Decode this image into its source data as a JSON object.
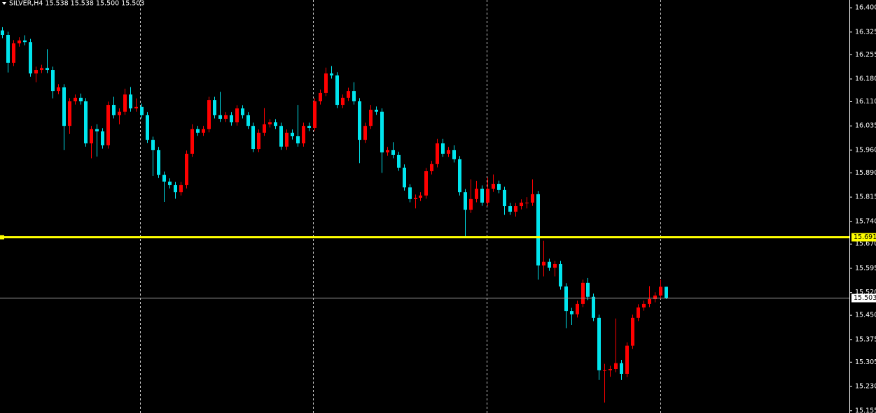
{
  "chart_data": {
    "type": "candlestick",
    "header": "SILVER,H4  15.538 15.538 15.500 15.503",
    "up_color": "#ff0000",
    "down_color": "#00e5ee",
    "open": [
      16.33,
      16.316,
      16.23,
      16.29,
      16.299,
      16.294,
      16.197,
      16.208,
      16.214,
      16.208,
      16.143,
      16.154,
      16.035,
      16.111,
      16.122,
      16.111,
      15.981,
      16.025,
      16.018,
      15.975,
      16.1,
      16.068,
      16.079,
      16.132,
      16.089,
      16.094,
      16.068,
      15.992,
      15.96,
      15.884,
      15.863,
      15.852,
      15.83,
      15.852,
      15.949,
      16.025,
      16.014,
      16.025,
      16.115,
      16.068,
      16.057,
      16.068,
      16.046,
      16.089,
      16.068,
      16.035,
      15.964,
      16.014,
      16.04,
      16.046,
      16.035,
      15.971,
      16.014,
      16.003,
      15.981,
      16.035,
      16.029,
      16.111,
      16.137,
      16.197,
      16.191,
      16.1,
      16.122,
      16.143,
      16.111,
      15.992,
      16.035,
      16.085,
      16.079,
      15.953,
      15.96,
      15.945,
      15.906,
      15.845,
      15.809,
      15.813,
      15.82,
      15.895,
      15.917,
      15.981,
      15.949,
      15.96,
      15.932,
      15.83,
      15.776,
      15.809,
      15.841,
      15.798,
      15.841,
      15.856,
      15.837,
      15.787,
      15.77,
      15.787,
      15.798,
      15.798,
      15.824,
      15.604,
      15.615,
      15.597,
      15.608,
      15.539,
      15.463,
      15.453,
      15.485,
      15.55,
      15.507,
      15.442,
      15.28,
      15.28,
      15.284,
      15.302,
      15.269,
      15.356,
      15.442,
      15.474,
      15.485,
      15.5,
      15.511,
      15.538
    ],
    "high": [
      16.34,
      16.326,
      16.3,
      16.309,
      16.315,
      16.304,
      16.218,
      16.224,
      16.272,
      16.218,
      16.164,
      16.164,
      16.121,
      16.132,
      16.135,
      16.121,
      16.035,
      16.04,
      16.028,
      16.11,
      16.125,
      16.089,
      16.15,
      16.155,
      16.12,
      16.104,
      16.078,
      16.002,
      15.97,
      15.894,
      15.873,
      15.862,
      15.862,
      15.959,
      16.04,
      16.035,
      16.035,
      16.125,
      16.125,
      16.14,
      16.078,
      16.078,
      16.099,
      16.099,
      16.078,
      16.045,
      16.024,
      16.09,
      16.056,
      16.056,
      16.045,
      16.024,
      16.024,
      16.1,
      16.045,
      16.045,
      16.121,
      16.147,
      16.215,
      16.22,
      16.201,
      16.132,
      16.153,
      16.17,
      16.121,
      16.045,
      16.1,
      16.095,
      16.089,
      15.97,
      15.985,
      15.955,
      15.916,
      15.855,
      15.823,
      15.83,
      15.905,
      15.927,
      15.995,
      15.995,
      15.97,
      15.975,
      15.942,
      15.84,
      15.87,
      15.865,
      15.851,
      15.875,
      15.885,
      15.866,
      15.847,
      15.797,
      15.797,
      15.808,
      15.815,
      15.87,
      15.834,
      15.68,
      15.625,
      15.618,
      15.618,
      15.549,
      15.473,
      15.495,
      15.56,
      15.565,
      15.517,
      15.452,
      15.3,
      15.294,
      15.44,
      15.312,
      15.366,
      15.452,
      15.484,
      15.495,
      15.54,
      15.521,
      15.56,
      15.538
    ],
    "low": [
      16.306,
      16.2,
      16.22,
      16.28,
      16.284,
      16.187,
      16.17,
      16.198,
      16.198,
      16.12,
      16.133,
      15.96,
      16.01,
      16.101,
      16.101,
      15.971,
      15.935,
      15.94,
      15.965,
      15.965,
      16.058,
      16.04,
      16.069,
      16.079,
      16.079,
      16.058,
      15.982,
      15.88,
      15.874,
      15.8,
      15.842,
      15.81,
      15.82,
      15.842,
      15.939,
      16.004,
      16.004,
      16.015,
      16.058,
      16.047,
      16.047,
      16.036,
      16.036,
      16.058,
      16.025,
      15.954,
      15.954,
      16.004,
      16.03,
      16.025,
      15.961,
      15.961,
      15.993,
      15.971,
      15.971,
      16.019,
      16.019,
      16.101,
      16.127,
      16.181,
      16.09,
      16.09,
      16.112,
      16.101,
      15.92,
      15.982,
      16.025,
      16.069,
      15.89,
      15.943,
      15.935,
      15.896,
      15.835,
      15.799,
      15.78,
      15.803,
      15.81,
      15.885,
      15.907,
      15.939,
      15.939,
      15.922,
      15.82,
      15.69,
      15.766,
      15.799,
      15.788,
      15.788,
      15.831,
      15.827,
      15.76,
      15.76,
      15.755,
      15.777,
      15.78,
      15.788,
      15.56,
      15.57,
      15.587,
      15.57,
      15.529,
      15.41,
      15.42,
      15.443,
      15.475,
      15.497,
      15.432,
      15.25,
      15.18,
      15.26,
      15.274,
      15.25,
      15.259,
      15.346,
      15.432,
      15.464,
      15.475,
      15.49,
      15.501,
      15.5
    ],
    "close": [
      16.316,
      16.23,
      16.29,
      16.299,
      16.294,
      16.197,
      16.208,
      16.214,
      16.208,
      16.143,
      16.154,
      16.035,
      16.111,
      16.122,
      16.111,
      15.981,
      16.025,
      16.018,
      15.975,
      16.1,
      16.068,
      16.079,
      16.132,
      16.089,
      16.094,
      16.068,
      15.992,
      15.96,
      15.884,
      15.863,
      15.852,
      15.83,
      15.852,
      15.949,
      16.025,
      16.014,
      16.025,
      16.115,
      16.068,
      16.057,
      16.068,
      16.046,
      16.089,
      16.068,
      16.035,
      15.964,
      16.014,
      16.04,
      16.046,
      16.035,
      15.971,
      16.014,
      16.003,
      15.981,
      16.035,
      16.029,
      16.111,
      16.137,
      16.197,
      16.191,
      16.1,
      16.122,
      16.143,
      16.111,
      15.992,
      16.035,
      16.085,
      16.079,
      15.953,
      15.96,
      15.945,
      15.906,
      15.845,
      15.809,
      15.813,
      15.82,
      15.895,
      15.917,
      15.981,
      15.949,
      15.96,
      15.932,
      15.83,
      15.776,
      15.809,
      15.841,
      15.798,
      15.841,
      15.856,
      15.837,
      15.787,
      15.77,
      15.787,
      15.798,
      15.798,
      15.824,
      15.604,
      15.615,
      15.597,
      15.608,
      15.539,
      15.463,
      15.453,
      15.485,
      15.55,
      15.507,
      15.442,
      15.28,
      15.28,
      15.284,
      15.302,
      15.269,
      15.356,
      15.442,
      15.474,
      15.485,
      15.5,
      15.511,
      15.538,
      15.503
    ],
    "level": 15.691,
    "level_color": "#ffff00",
    "ylim": [
      15.148,
      16.424
    ],
    "yticks": [
      {
        "value": 16.4,
        "label": "16.400"
      },
      16.325,
      16.255,
      {
        "value": 16.18,
        "label": "16.180"
      },
      {
        "value": 16.11,
        "label": "16.110"
      },
      16.035,
      {
        "value": 15.96,
        "label": "15.960"
      },
      {
        "value": 15.89,
        "label": "15.890"
      },
      15.815,
      {
        "value": 15.74,
        "label": "15.740"
      },
      {
        "value": 15.67,
        "label": "15.670"
      },
      15.595,
      {
        "value": 15.52,
        "label": "15.520"
      },
      {
        "value": 15.45,
        "label": "15.450"
      },
      15.375,
      15.305,
      {
        "value": 15.23,
        "label": "15.230"
      },
      15.155
    ]
  }
}
